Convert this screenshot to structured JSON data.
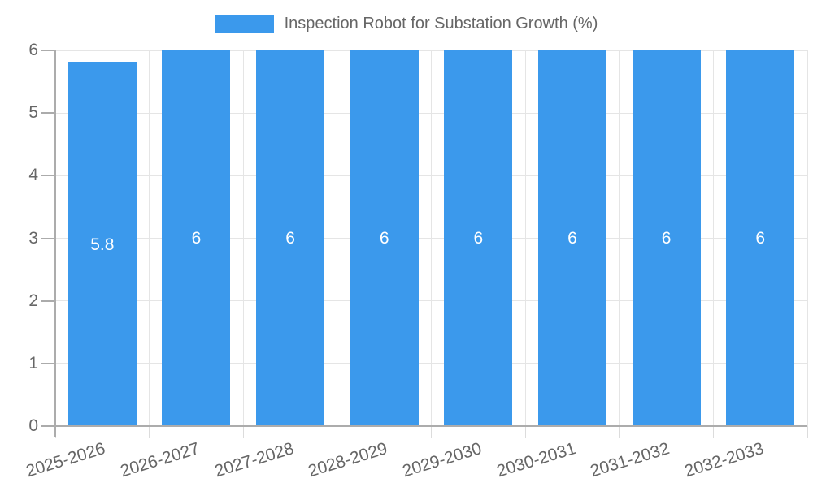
{
  "chart_data": {
    "type": "bar",
    "title": "",
    "legend_label": "Inspection Robot for Substation Growth (%)",
    "legend_position": "top-center",
    "categories": [
      "2025-2026",
      "2026-2027",
      "2027-2028",
      "2028-2029",
      "2029-2030",
      "2030-2031",
      "2031-2032",
      "2032-2033"
    ],
    "values": [
      5.8,
      6,
      6,
      6,
      6,
      6,
      6,
      6
    ],
    "bar_labels": [
      "5.8",
      "6",
      "6",
      "6",
      "6",
      "6",
      "6",
      "6"
    ],
    "xlabel": "",
    "ylabel": "",
    "ylim": [
      0,
      6
    ],
    "yticks": [
      0,
      1,
      2,
      3,
      4,
      5,
      6
    ],
    "ytick_labels": [
      "0",
      "1",
      "2",
      "3",
      "4",
      "5",
      "6"
    ],
    "grid": true,
    "colors": {
      "bar": "#3B99EC",
      "bar_label_text": "#FFFFFF",
      "axis_text": "#666666",
      "gridline": "#E5E5E5",
      "axis_line": "#ACACAC",
      "y_tick": "#ABABAB",
      "x_tick": "#DCDCDC",
      "background": "#FFFFFF"
    }
  }
}
